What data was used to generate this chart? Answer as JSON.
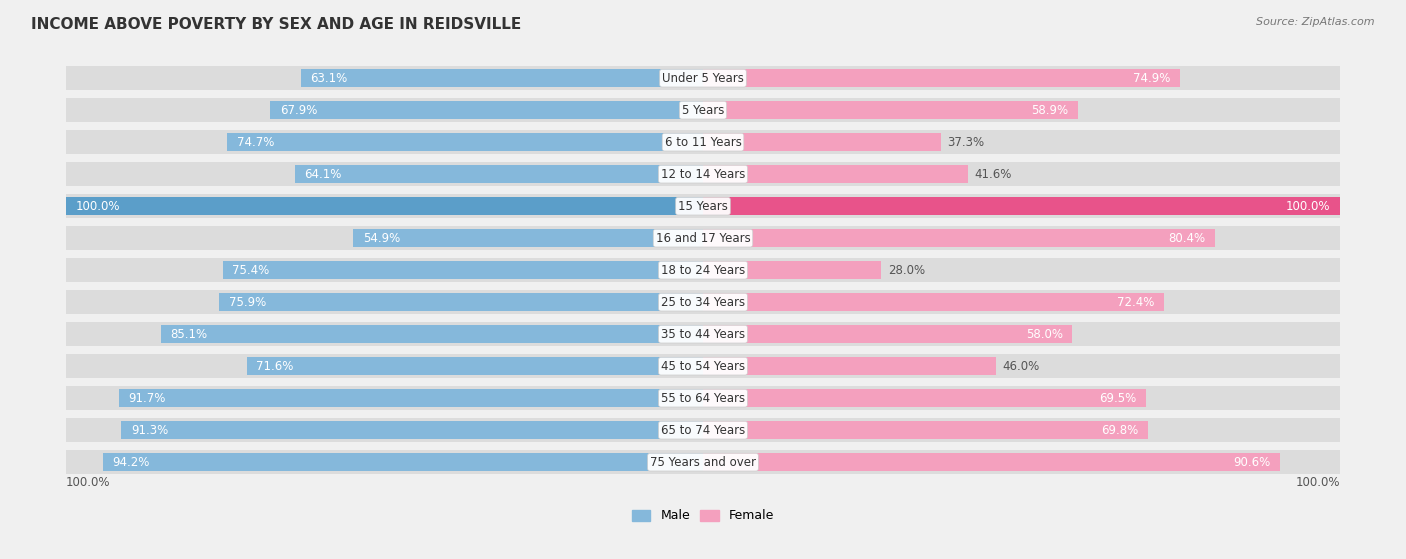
{
  "title": "INCOME ABOVE POVERTY BY SEX AND AGE IN REIDSVILLE",
  "source": "Source: ZipAtlas.com",
  "categories": [
    "Under 5 Years",
    "5 Years",
    "6 to 11 Years",
    "12 to 14 Years",
    "15 Years",
    "16 and 17 Years",
    "18 to 24 Years",
    "25 to 34 Years",
    "35 to 44 Years",
    "45 to 54 Years",
    "55 to 64 Years",
    "65 to 74 Years",
    "75 Years and over"
  ],
  "male_values": [
    63.1,
    67.9,
    74.7,
    64.1,
    100.0,
    54.9,
    75.4,
    75.9,
    85.1,
    71.6,
    91.7,
    91.3,
    94.2
  ],
  "female_values": [
    74.9,
    58.9,
    37.3,
    41.6,
    100.0,
    80.4,
    28.0,
    72.4,
    58.0,
    46.0,
    69.5,
    69.8,
    90.6
  ],
  "male_color": "#85b8db",
  "male_color_full": "#5b9ec9",
  "female_color": "#f4a0be",
  "female_color_full": "#e8538a",
  "bar_height": 0.55,
  "bg_color": "#f0f0f0",
  "bar_bg_color": "#dcdcdc",
  "label_fontsize": 8.5,
  "title_fontsize": 11,
  "axis_max": 100.0,
  "bottom_label_male": "100.0%",
  "bottom_label_female": "100.0%",
  "white_label_threshold_male": 15.0,
  "white_label_threshold_female": 55.0
}
